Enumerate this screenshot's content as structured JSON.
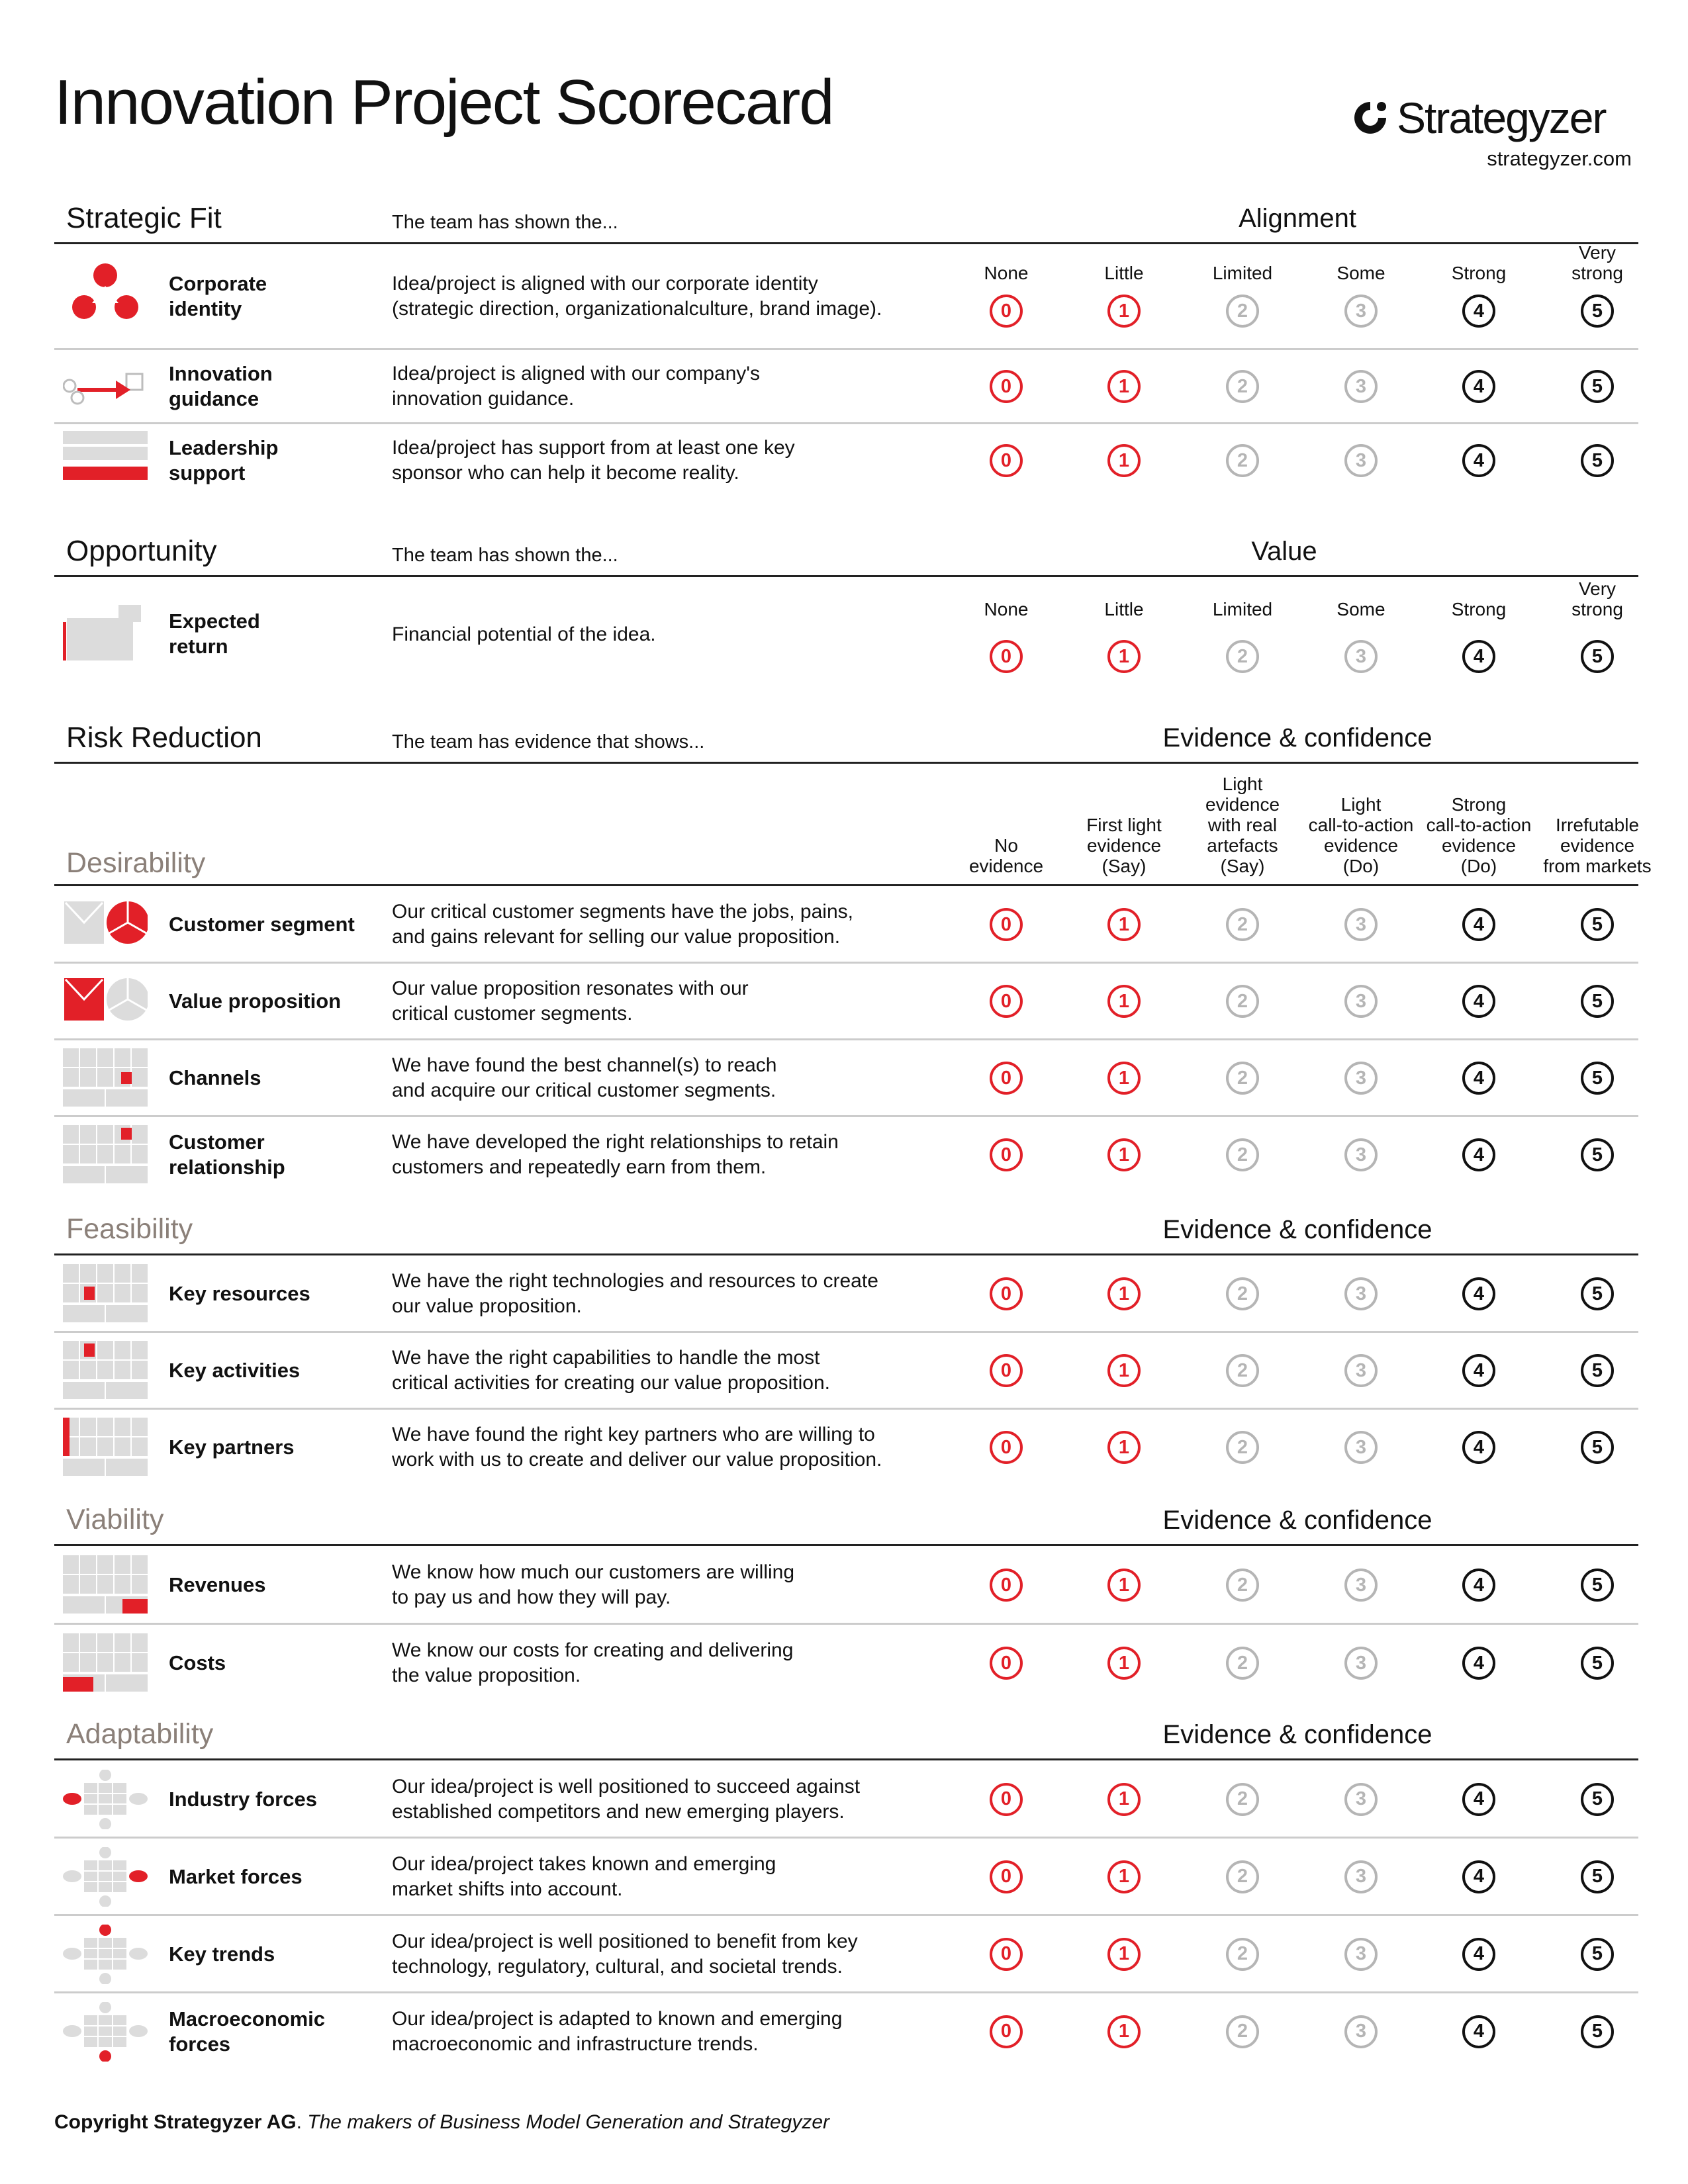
{
  "title": "Innovation Project Scorecard",
  "brand": {
    "name": "Strategyzer",
    "site": "strategyzer.com"
  },
  "colors": {
    "red": "#e22028",
    "grey": "#b5b5b5",
    "black": "#111111",
    "category": "#8b8079"
  },
  "scores": [
    "0",
    "1",
    "2",
    "3",
    "4",
    "5"
  ],
  "strategic_fit": {
    "title": "Strategic Fit",
    "subtitle": "The team has shown the...",
    "scale_title": "Alignment",
    "columns": [
      "None",
      "Little",
      "Limited",
      "Some",
      "Strong",
      "Very\nstrong"
    ],
    "rows": [
      {
        "label": "Corporate\nidentity",
        "desc": "Idea/project is aligned with our corporate identity\n(strategic direction, organizationalculture, brand image).",
        "icon": "corporate-identity-icon"
      },
      {
        "label": "Innovation\nguidance",
        "desc": "Idea/project is aligned with our company's\ninnovation guidance.",
        "icon": "innovation-guidance-icon"
      },
      {
        "label": "Leadership\nsupport",
        "desc": "Idea/project has support from at least one key\nsponsor who can help it become reality.",
        "icon": "leadership-support-icon"
      }
    ]
  },
  "opportunity": {
    "title": "Opportunity",
    "subtitle": "The team has shown the...",
    "scale_title": "Value",
    "columns": [
      "None",
      "Little",
      "Limited",
      "Some",
      "Strong",
      "Very\nstrong"
    ],
    "rows": [
      {
        "label": "Expected\nreturn",
        "desc": "Financial potential of the idea.",
        "icon": "expected-return-icon"
      }
    ]
  },
  "risk_reduction": {
    "title": "Risk Reduction",
    "subtitle": "The team has evidence that shows...",
    "scale_title": "Evidence & confidence",
    "columns": [
      "No\nevidence",
      "First light\nevidence\n(Say)",
      "Light\nevidence\nwith real\nartefacts\n(Say)",
      "Light\ncall-to-action\nevidence\n(Do)",
      "Strong\ncall-to-action\nevidence\n(Do)",
      "Irrefutable\nevidence\nfrom markets"
    ],
    "desirability": {
      "title": "Desirability",
      "rows": [
        {
          "label": "Customer segment",
          "desc": "Our critical customer segments have the jobs, pains,\nand gains relevant for selling our value proposition.",
          "icon": "customer-segment-icon"
        },
        {
          "label": "Value proposition",
          "desc": "Our value proposition resonates with our\ncritical customer segments.",
          "icon": "value-proposition-icon"
        },
        {
          "label": "Channels",
          "desc": "We have found the best channel(s) to reach\nand acquire our critical customer segments.",
          "icon": "channels-icon"
        },
        {
          "label": "Customer\nrelationship",
          "desc": "We have developed the right relationships to retain\ncustomers and repeatedly earn from them.",
          "icon": "customer-relationship-icon"
        }
      ]
    },
    "feasibility": {
      "title": "Feasibility",
      "scale_title": "Evidence & confidence",
      "rows": [
        {
          "label": "Key resources",
          "desc": "We have the right technologies and resources to create\nour value proposition.",
          "icon": "key-resources-icon"
        },
        {
          "label": "Key activities",
          "desc": "We have the right capabilities to handle the most\ncritical activities for creating our value proposition.",
          "icon": "key-activities-icon"
        },
        {
          "label": "Key partners",
          "desc": "We have found the right key partners who are willing to\nwork with us to create and deliver our value proposition.",
          "icon": "key-partners-icon"
        }
      ]
    },
    "viability": {
      "title": "Viability",
      "scale_title": "Evidence & confidence",
      "rows": [
        {
          "label": "Revenues",
          "desc": "We know how much our customers are willing\nto pay us and how they will pay.",
          "icon": "revenues-icon"
        },
        {
          "label": "Costs",
          "desc": "We know our costs for creating and delivering\nthe value proposition.",
          "icon": "costs-icon"
        }
      ]
    },
    "adaptability": {
      "title": "Adaptability",
      "scale_title": "Evidence & confidence",
      "rows": [
        {
          "label": "Industry forces",
          "desc": "Our idea/project is well positioned to succeed against\nestablished competitors and new emerging players.",
          "icon": "industry-forces-icon"
        },
        {
          "label": "Market forces",
          "desc": "Our idea/project takes known and emerging\nmarket shifts into account.",
          "icon": "market-forces-icon"
        },
        {
          "label": "Key trends",
          "desc": "Our idea/project is well positioned to benefit from key\ntechnology, regulatory, cultural, and societal trends.",
          "icon": "key-trends-icon"
        },
        {
          "label": "Macroeconomic\nforces",
          "desc": "Our idea/project is adapted to known and emerging\nmacroeconomic and infrastructure trends.",
          "icon": "macroeconomic-forces-icon"
        }
      ]
    }
  },
  "footer": {
    "bold": "Copyright Strategyzer AG",
    "italic": "The makers of Business Model Generation and Strategyzer"
  }
}
